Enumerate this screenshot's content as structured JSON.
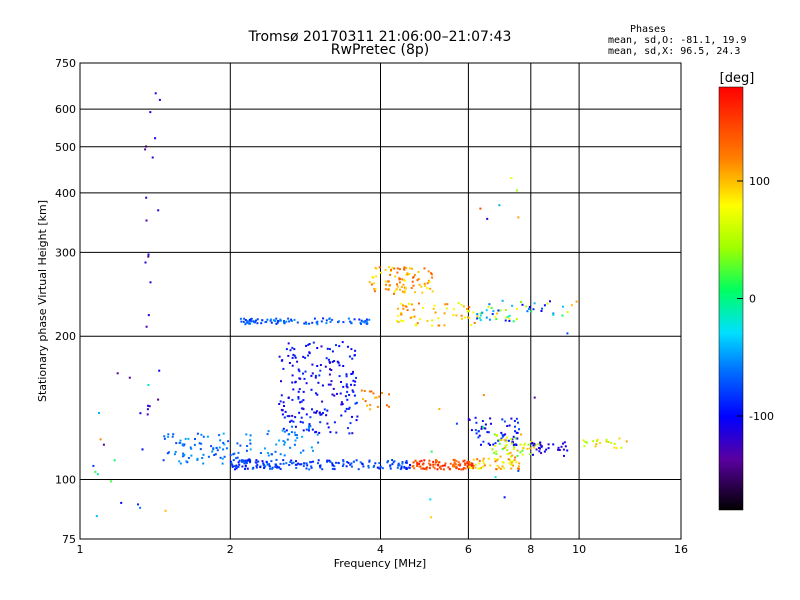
{
  "chart_data": {
    "type": "scatter",
    "title": "Tromsø 20170311 21:06:00–21:07:43",
    "subtitle": "RwPretec (8p)",
    "stats": {
      "header": "Phases",
      "line_o": "mean, sd,O: -81.1, 19.9",
      "line_x": "mean, sd,X:  96.5, 24.3"
    },
    "xlabel": "Frequency [MHz]",
    "ylabel": "Stationary phase Virtual Height [km]",
    "x_scale": "log",
    "y_scale": "log",
    "xlim": [
      1,
      16
    ],
    "ylim": [
      75,
      750
    ],
    "xticks": [
      1,
      2,
      4,
      6,
      8,
      10,
      16
    ],
    "yticks": [
      75,
      100,
      200,
      300,
      400,
      500,
      600,
      750
    ],
    "grid": true,
    "colorbar": {
      "label": "[deg]",
      "range": [
        -180,
        180
      ],
      "ticks": [
        100,
        0,
        -100
      ]
    },
    "clusters": [
      {
        "freq": [
          1.45,
          2.2
        ],
        "height": [
          108,
          125
        ],
        "phase": [
          -80,
          -40
        ],
        "count": 90
      },
      {
        "freq": [
          2.0,
          4.6
        ],
        "height": [
          105,
          110
        ],
        "phase": [
          -100,
          -60
        ],
        "count": 180
      },
      {
        "freq": [
          4.6,
          6.2
        ],
        "height": [
          105,
          110
        ],
        "phase": [
          120,
          175
        ],
        "count": 100
      },
      {
        "freq": [
          6.0,
          7.6
        ],
        "height": [
          105,
          112
        ],
        "phase": [
          60,
          130
        ],
        "count": 50
      },
      {
        "freq": [
          2.5,
          3.6
        ],
        "height": [
          125,
          195
        ],
        "phase": [
          -120,
          -80
        ],
        "count": 200
      },
      {
        "freq": [
          2.3,
          3.0
        ],
        "height": [
          112,
          130
        ],
        "phase": [
          -70,
          -40
        ],
        "count": 40
      },
      {
        "freq": [
          2.1,
          3.8
        ],
        "height": [
          212,
          218
        ],
        "phase": [
          -90,
          -50
        ],
        "count": 90
      },
      {
        "freq": [
          3.8,
          5.1
        ],
        "height": [
          245,
          280
        ],
        "phase": [
          80,
          140
        ],
        "count": 90
      },
      {
        "freq": [
          4.3,
          6.2
        ],
        "height": [
          210,
          235
        ],
        "phase": [
          60,
          130
        ],
        "count": 60
      },
      {
        "freq": [
          6.0,
          7.6
        ],
        "height": [
          118,
          135
        ],
        "phase": [
          -120,
          -70
        ],
        "count": 60
      },
      {
        "freq": [
          6.6,
          8.3
        ],
        "height": [
          112,
          125
        ],
        "phase": [
          20,
          110
        ],
        "count": 50
      },
      {
        "freq": [
          8.0,
          9.5
        ],
        "height": [
          112,
          120
        ],
        "phase": [
          -130,
          -100
        ],
        "count": 30
      },
      {
        "freq": [
          10.0,
          12.5
        ],
        "height": [
          116,
          122
        ],
        "phase": [
          40,
          110
        ],
        "count": 20
      },
      {
        "freq": [
          6.2,
          8.0
        ],
        "height": [
          215,
          240
        ],
        "phase": [
          -120,
          100
        ],
        "count": 40
      },
      {
        "freq": [
          8.0,
          10.0
        ],
        "height": [
          220,
          240
        ],
        "phase": [
          -130,
          150
        ],
        "count": 15
      },
      {
        "freq": [
          3.6,
          4.2
        ],
        "height": [
          140,
          155
        ],
        "phase": [
          100,
          140
        ],
        "count": 18
      },
      {
        "freq": [
          1.35,
          1.45
        ],
        "height": [
          130,
          660
        ],
        "phase": [
          -160,
          -100
        ],
        "count": 22
      },
      {
        "freq": [
          1.0,
          1.5
        ],
        "height": [
          80,
          170
        ],
        "phase": [
          -150,
          140
        ],
        "count": 18
      },
      {
        "freq": [
          5.0,
          9.5
        ],
        "height": [
          80,
          520
        ],
        "phase": [
          -160,
          160
        ],
        "count": 18
      }
    ]
  }
}
